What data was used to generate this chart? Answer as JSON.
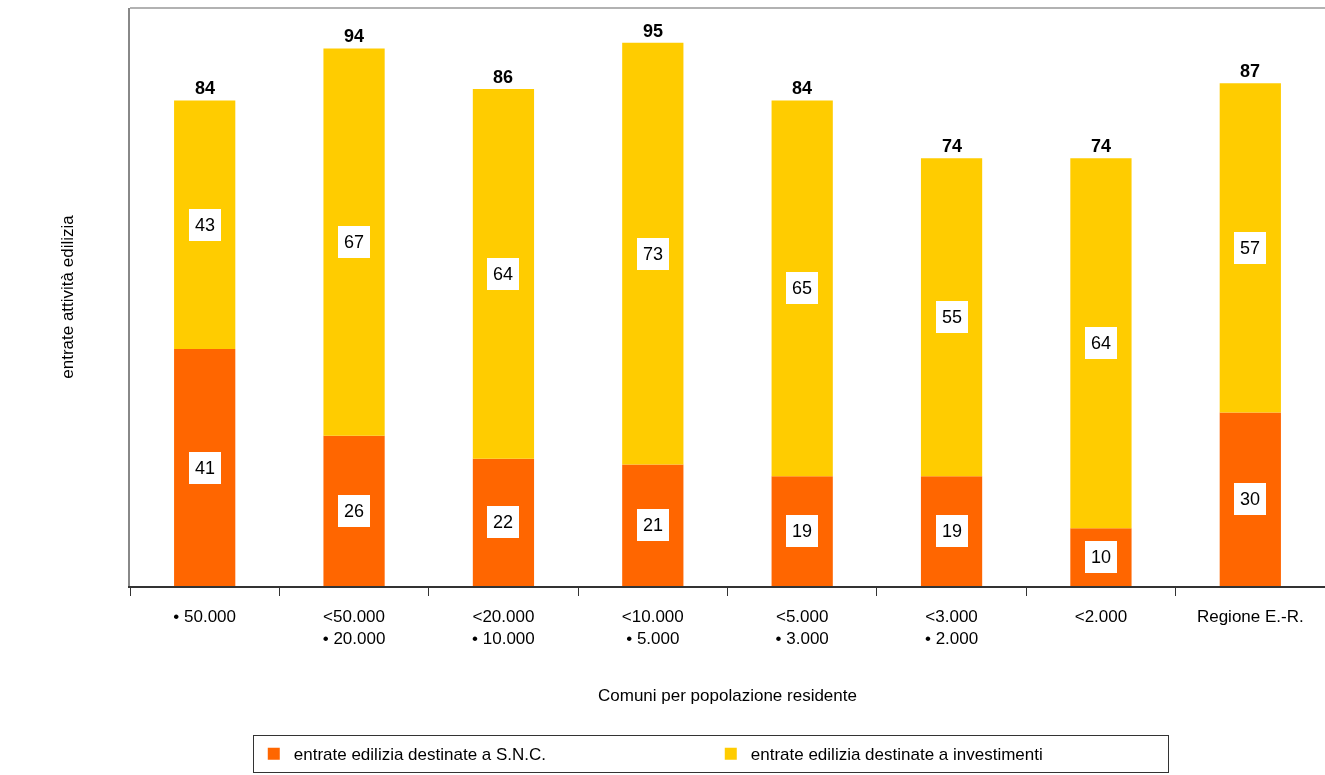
{
  "chart_data": {
    "type": "bar",
    "stacked": true,
    "xlabel": "Comuni per popolazione residente",
    "ylabel": "entrate attività edilizia",
    "categories": [
      "• 50.000",
      "<50.000\n• 20.000",
      "<20.000\n• 10.000",
      "<10.000\n• 5.000",
      "<5.000\n• 3.000",
      "<3.000\n• 2.000",
      "<2.000",
      "Regione E.-R."
    ],
    "series": [
      {
        "name": "entrate edilizia destinate a S.N.C.",
        "color": "#ff6600",
        "values": [
          41,
          26,
          22,
          21,
          19,
          19,
          10,
          30
        ]
      },
      {
        "name": "entrate edilizia destinate a investimenti",
        "color": "#ffcc00",
        "values": [
          43,
          67,
          64,
          73,
          65,
          55,
          64,
          57
        ]
      }
    ],
    "totals": [
      "84",
      "94",
      "86",
      "95",
      "84",
      "74",
      "74",
      "87"
    ],
    "data_labels": true,
    "ylim": [
      0,
      100
    ],
    "tick_labels": "x",
    "legend": "bottom"
  }
}
